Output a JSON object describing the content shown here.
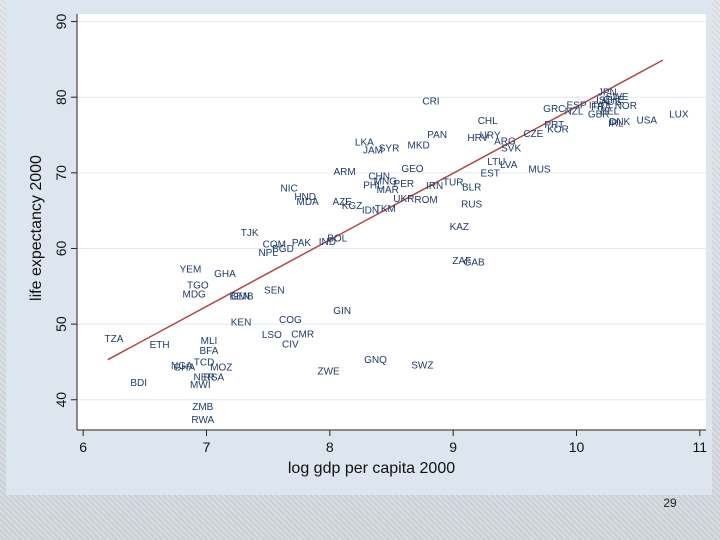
{
  "page": {
    "number": "29"
  },
  "colors": {
    "panel": "#dde5ee",
    "plot": "#ffffff",
    "label": "#1f3a68",
    "fit_line": "#b04848",
    "gridline": "#e3e8ee"
  },
  "chart_data": {
    "type": "scatter",
    "title": "",
    "xlabel": "log gdp per capita 2000",
    "ylabel": "life expectancy 2000",
    "xlim": [
      5.95,
      11.05
    ],
    "ylim": [
      36,
      91
    ],
    "x_ticks": [
      6,
      7,
      8,
      9,
      10,
      11
    ],
    "y_ticks": [
      40,
      50,
      60,
      70,
      80,
      90
    ],
    "grid": "horizontal",
    "fit_line": {
      "x": [
        6.2,
        10.7
      ],
      "y": [
        45.3,
        84.9
      ]
    },
    "points": [
      {
        "label": "TZA",
        "x": 6.25,
        "y": 48.1
      },
      {
        "label": "ETH",
        "x": 6.62,
        "y": 47.3
      },
      {
        "label": "BDI",
        "x": 6.45,
        "y": 42.3
      },
      {
        "label": "NGA",
        "x": 6.8,
        "y": 44.5
      },
      {
        "label": "GHA",
        "x": 6.82,
        "y": 44.3
      },
      {
        "label": "MWI",
        "x": 6.95,
        "y": 42.0
      },
      {
        "label": "NER",
        "x": 6.98,
        "y": 43.0
      },
      {
        "label": "RSA",
        "x": 7.06,
        "y": 43.0
      },
      {
        "label": "MOZ",
        "x": 7.12,
        "y": 44.3
      },
      {
        "label": "TCD",
        "x": 6.98,
        "y": 45.0
      },
      {
        "label": "BFA",
        "x": 7.02,
        "y": 46.5
      },
      {
        "label": "MLI",
        "x": 7.02,
        "y": 47.8
      },
      {
        "label": "ZMB",
        "x": 6.97,
        "y": 39.1
      },
      {
        "label": "RWA",
        "x": 6.97,
        "y": 37.4
      },
      {
        "label": "YEM",
        "x": 6.87,
        "y": 57.3
      },
      {
        "label": "TGO",
        "x": 6.93,
        "y": 55.2
      },
      {
        "label": "MDG",
        "x": 6.9,
        "y": 54.0
      },
      {
        "label": "GHA",
        "x": 7.15,
        "y": 56.7
      },
      {
        "label": "SEN",
        "x": 7.55,
        "y": 54.5
      },
      {
        "label": "BEN",
        "x": 7.27,
        "y": 53.7
      },
      {
        "label": "GMB",
        "x": 7.29,
        "y": 53.7
      },
      {
        "label": "KEN",
        "x": 7.28,
        "y": 50.3
      },
      {
        "label": "COG",
        "x": 7.68,
        "y": 50.6
      },
      {
        "label": "LSO",
        "x": 7.53,
        "y": 48.6
      },
      {
        "label": "CMR",
        "x": 7.78,
        "y": 48.7
      },
      {
        "label": "CIV",
        "x": 7.68,
        "y": 47.4
      },
      {
        "label": "ZWE",
        "x": 7.99,
        "y": 43.8
      },
      {
        "label": "GNQ",
        "x": 8.37,
        "y": 45.3
      },
      {
        "label": "SWZ",
        "x": 8.75,
        "y": 44.6
      },
      {
        "label": "GIN",
        "x": 8.1,
        "y": 51.8
      },
      {
        "label": "TJK",
        "x": 7.35,
        "y": 62.1
      },
      {
        "label": "COM",
        "x": 7.55,
        "y": 60.6
      },
      {
        "label": "BGD",
        "x": 7.62,
        "y": 60.0
      },
      {
        "label": "NPL",
        "x": 7.5,
        "y": 59.5
      },
      {
        "label": "PAK",
        "x": 7.77,
        "y": 60.8
      },
      {
        "label": "IND",
        "x": 7.98,
        "y": 60.9
      },
      {
        "label": "BOL",
        "x": 8.06,
        "y": 61.4
      },
      {
        "label": "NIC",
        "x": 7.67,
        "y": 68.0
      },
      {
        "label": "HND",
        "x": 7.8,
        "y": 66.9
      },
      {
        "label": "MDA",
        "x": 7.82,
        "y": 66.2
      },
      {
        "label": "AZE",
        "x": 8.1,
        "y": 66.2
      },
      {
        "label": "KGZ",
        "x": 8.18,
        "y": 65.7
      },
      {
        "label": "IDN",
        "x": 8.33,
        "y": 65.1
      },
      {
        "label": "TKM",
        "x": 8.45,
        "y": 65.3
      },
      {
        "label": "UKR",
        "x": 8.6,
        "y": 66.6
      },
      {
        "label": "ROM",
        "x": 8.78,
        "y": 66.5
      },
      {
        "label": "ARM",
        "x": 8.12,
        "y": 70.2
      },
      {
        "label": "PHL",
        "x": 8.35,
        "y": 68.4
      },
      {
        "label": "CHN",
        "x": 8.4,
        "y": 69.6
      },
      {
        "label": "MAR",
        "x": 8.47,
        "y": 67.8
      },
      {
        "label": "MNG",
        "x": 8.45,
        "y": 68.9
      },
      {
        "label": "PER",
        "x": 8.6,
        "y": 68.6
      },
      {
        "label": "GEO",
        "x": 8.67,
        "y": 70.6
      },
      {
        "label": "LKA",
        "x": 8.28,
        "y": 74.1
      },
      {
        "label": "JAM",
        "x": 8.35,
        "y": 73.0
      },
      {
        "label": "SYR",
        "x": 8.48,
        "y": 73.3
      },
      {
        "label": "MKD",
        "x": 8.72,
        "y": 73.7
      },
      {
        "label": "PAN",
        "x": 8.87,
        "y": 75.1
      },
      {
        "label": "CRI",
        "x": 8.82,
        "y": 79.5
      },
      {
        "label": "IRN",
        "x": 8.85,
        "y": 68.3
      },
      {
        "label": "KAZ",
        "x": 9.05,
        "y": 62.9
      },
      {
        "label": "RUS",
        "x": 9.15,
        "y": 65.9
      },
      {
        "label": "BLR",
        "x": 9.15,
        "y": 68.1
      },
      {
        "label": "TUR",
        "x": 9.0,
        "y": 68.8
      },
      {
        "label": "EST",
        "x": 9.3,
        "y": 70.0
      },
      {
        "label": "ZAF",
        "x": 9.07,
        "y": 58.4
      },
      {
        "label": "GAB",
        "x": 9.17,
        "y": 58.2
      },
      {
        "label": "CHL",
        "x": 9.28,
        "y": 76.9
      },
      {
        "label": "HRV",
        "x": 9.2,
        "y": 74.7
      },
      {
        "label": "URY",
        "x": 9.3,
        "y": 75.0
      },
      {
        "label": "ARG",
        "x": 9.42,
        "y": 74.2
      },
      {
        "label": "SVK",
        "x": 9.47,
        "y": 73.3
      },
      {
        "label": "LTU",
        "x": 9.35,
        "y": 71.5
      },
      {
        "label": "LVA",
        "x": 9.45,
        "y": 71.1
      },
      {
        "label": "MUS",
        "x": 9.7,
        "y": 70.5
      },
      {
        "label": "CZE",
        "x": 9.65,
        "y": 75.2
      },
      {
        "label": "GRC",
        "x": 9.82,
        "y": 78.5
      },
      {
        "label": "PRT",
        "x": 9.82,
        "y": 76.4
      },
      {
        "label": "KOR",
        "x": 9.85,
        "y": 75.8
      },
      {
        "label": "NZL",
        "x": 9.98,
        "y": 78.2
      },
      {
        "label": "ESP",
        "x": 10.0,
        "y": 79.0
      },
      {
        "label": "GBR",
        "x": 10.18,
        "y": 77.8
      },
      {
        "label": "DNK",
        "x": 10.35,
        "y": 76.8
      },
      {
        "label": "USA",
        "x": 10.57,
        "y": 77.0
      },
      {
        "label": "LUX",
        "x": 10.83,
        "y": 77.8
      },
      {
        "label": "JPN",
        "x": 10.25,
        "y": 80.7
      },
      {
        "label": "SWE",
        "x": 10.33,
        "y": 80.1
      },
      {
        "label": "CHE",
        "x": 10.3,
        "y": 79.7
      },
      {
        "label": "AUS",
        "x": 10.28,
        "y": 79.4
      },
      {
        "label": "ISL",
        "x": 10.22,
        "y": 79.6
      },
      {
        "label": "FRA",
        "x": 10.2,
        "y": 78.8
      },
      {
        "label": "ITA",
        "x": 10.16,
        "y": 79.0
      },
      {
        "label": "NOR",
        "x": 10.4,
        "y": 78.9
      },
      {
        "label": "BEL",
        "x": 10.27,
        "y": 78.2
      },
      {
        "label": "IRL",
        "x": 10.32,
        "y": 76.6
      }
    ]
  }
}
